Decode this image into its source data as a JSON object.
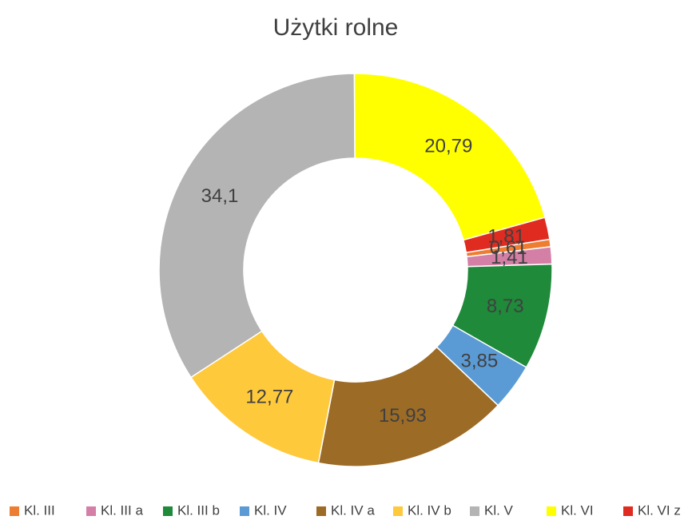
{
  "chart_data": {
    "type": "donut",
    "title": "Użytki rolne",
    "categories": [
      "Kl. III",
      "Kl. III a",
      "Kl. III b",
      "Kl. IV",
      "Kl. IV a",
      "Kl. IV b",
      "Kl. V",
      "Kl. VI",
      "Kl. VI z"
    ],
    "values": [
      0.61,
      1.41,
      8.73,
      3.85,
      15.93,
      12.77,
      34.1,
      20.79,
      1.81
    ],
    "value_labels": [
      "0,61",
      "1,41",
      "8,73",
      "3,85",
      "15,93",
      "12,77",
      "34,1",
      "20,79",
      "1,81"
    ],
    "colors": [
      "#ed7d31",
      "#d47fa6",
      "#1e8a3a",
      "#5b9bd5",
      "#9c6b26",
      "#ffc93c",
      "#b4b4b4",
      "#ffff00",
      "#e02b20"
    ],
    "first_slice_angle": 81,
    "legend": "bottom"
  }
}
